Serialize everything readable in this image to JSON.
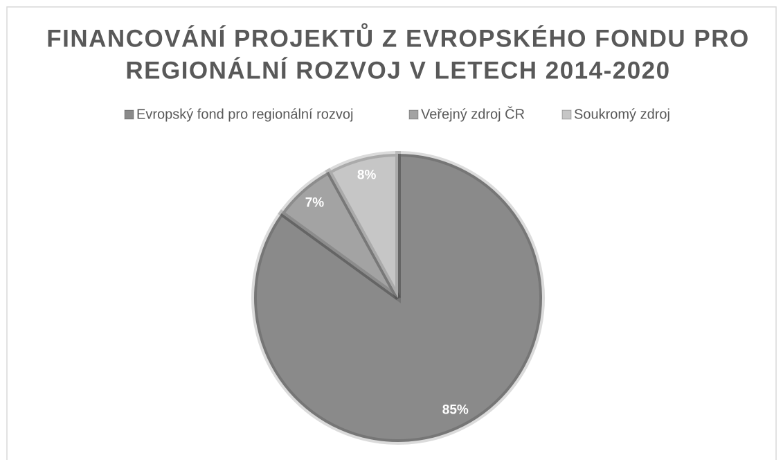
{
  "chart_data": {
    "type": "pie",
    "title": [
      "FINANCOVÁNÍ PROJEKTŮ Z EVROPSKÉHO FONDU PRO",
      "REGIONÁLNÍ ROZVOJ V LETECH 2014-2020"
    ],
    "categories": [
      "Evropský fond pro regionální rozvoj",
      "Veřejný zdroj ČR",
      "Soukromý zdroj"
    ],
    "values": [
      85,
      7,
      8
    ],
    "value_labels": [
      "85%",
      "7%",
      "8%"
    ],
    "colors": [
      "#8a8a8a",
      "#a3a3a3",
      "#c6c6c6"
    ],
    "legend": "top"
  }
}
